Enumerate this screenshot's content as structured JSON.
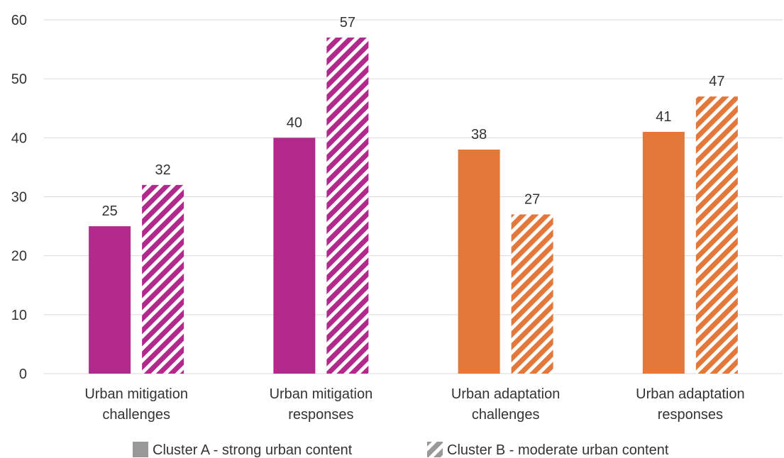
{
  "chart_data": {
    "type": "bar",
    "categories": [
      [
        "Urban mitigation",
        "challenges"
      ],
      [
        "Urban mitigation",
        "responses"
      ],
      [
        "Urban adaptation",
        "challenges"
      ],
      [
        "Urban adaptation",
        "responses"
      ]
    ],
    "category_colors": [
      "#b12a8b",
      "#b12a8b",
      "#e4773a",
      "#e4773a"
    ],
    "series": [
      {
        "name": "Cluster A - strong urban content",
        "pattern": "solid",
        "values": [
          25,
          40,
          38,
          41
        ]
      },
      {
        "name": "Cluster B - moderate urban content",
        "pattern": "hatched",
        "values": [
          32,
          57,
          27,
          47
        ]
      }
    ],
    "ylim": [
      0,
      60
    ],
    "yticks": [
      0,
      10,
      20,
      30,
      40,
      50,
      60
    ],
    "grid": true,
    "legend_position": "bottom-center",
    "legend_color": "#999999",
    "grid_color": "#d9d9d9",
    "title": "",
    "xlabel": "",
    "ylabel": ""
  }
}
